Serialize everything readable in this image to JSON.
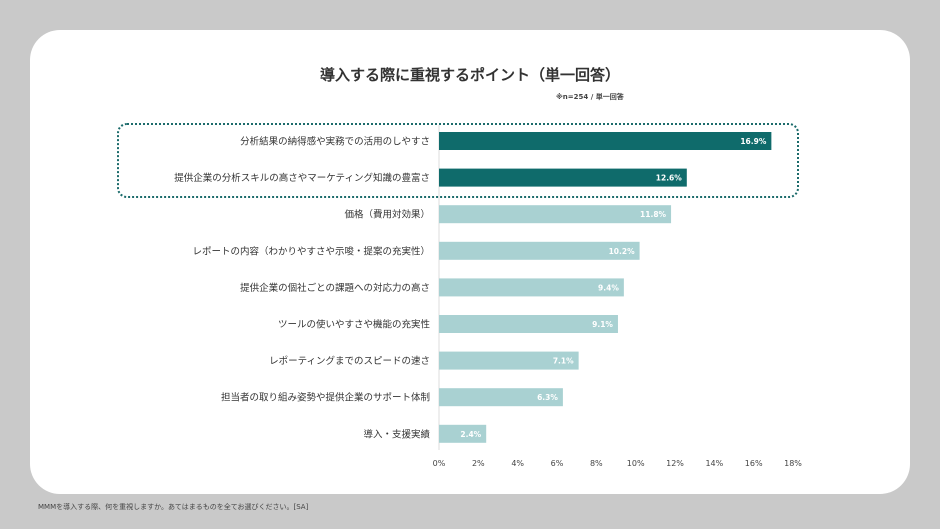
{
  "chart_data": {
    "type": "bar",
    "orientation": "horizontal",
    "title": "導入する際に重視するポイント（単一回答）",
    "subtitle": "※n=254 / 単一回答",
    "categories": [
      "分析結果の納得感や実務での活用のしやすさ",
      "提供企業の分析スキルの高さやマーケティング知識の豊富さ",
      "価格（費用対効果）",
      "レポートの内容（わかりやすさや示唆・提案の充実性）",
      "提供企業の個社ごとの課題への対応力の高さ",
      "ツールの使いやすさや機能の充実性",
      "レポーティングまでのスピードの速さ",
      "担当者の取り組み姿勢や提供企業のサポート体制",
      "導入・支援実績"
    ],
    "values": [
      16.9,
      12.6,
      11.8,
      10.2,
      9.4,
      9.1,
      7.1,
      6.3,
      2.4
    ],
    "data_labels": [
      "16.9%",
      "12.6%",
      "11.8%",
      "10.2%",
      "9.4%",
      "9.1%",
      "7.1%",
      "6.3%",
      "2.4%"
    ],
    "highlighted": [
      true,
      true,
      false,
      false,
      false,
      false,
      false,
      false,
      false
    ],
    "xlim": [
      0,
      18
    ],
    "xticks": [
      "0%",
      "2%",
      "4%",
      "6%",
      "8%",
      "10%",
      "12%",
      "14%",
      "16%",
      "18%"
    ],
    "grid": false,
    "colors": {
      "highlight": "#0f6b6b",
      "normal": "#a9d1d2"
    }
  },
  "footnote": "MMMを導入する際、何を重視しますか。あてはまるものを全てお選びください。[SA]"
}
